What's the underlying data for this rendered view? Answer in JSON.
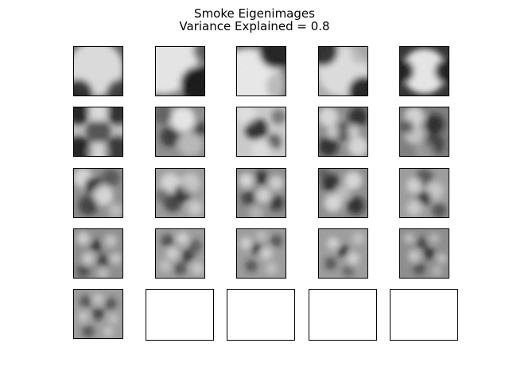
{
  "chart_data": {
    "type": "heatmap",
    "title": "Smoke Eigenimages",
    "subtitle": "Variance Explained = 0.8",
    "layout": {
      "rows": 5,
      "cols": 5
    },
    "colormap": "gray",
    "components": [
      {
        "id": 1,
        "pattern": "radial-blob-bright-center"
      },
      {
        "id": 2,
        "pattern": "gradient-bright-topleft"
      },
      {
        "id": 3,
        "pattern": "gradient-bright-bottomleft"
      },
      {
        "id": 4,
        "pattern": "diagonal-dark-corners"
      },
      {
        "id": 5,
        "pattern": "bright-center-dark-edges"
      },
      {
        "id": 6,
        "pattern": "dark-x-shape"
      },
      {
        "id": 7,
        "pattern": "bright-diagonal-blob"
      },
      {
        "id": 8,
        "pattern": "ring-dark-center"
      },
      {
        "id": 9,
        "pattern": "four-lobe"
      },
      {
        "id": 10,
        "pattern": "horizontal-bands"
      },
      {
        "id": 11,
        "pattern": "diagonal-stripes"
      },
      {
        "id": 12,
        "pattern": "diagonal-stripes-rotated"
      },
      {
        "id": 13,
        "pattern": "checker-blobs"
      },
      {
        "id": 14,
        "pattern": "four-lobe-rotated"
      },
      {
        "id": 15,
        "pattern": "horizontal-bands-fine"
      },
      {
        "id": 16,
        "pattern": "fine-blobs"
      },
      {
        "id": 17,
        "pattern": "fine-blobs-2"
      },
      {
        "id": 18,
        "pattern": "fine-diagonal"
      },
      {
        "id": 19,
        "pattern": "fine-rings"
      },
      {
        "id": 20,
        "pattern": "fine-mottled"
      },
      {
        "id": 21,
        "pattern": "fine-mottled-2"
      }
    ],
    "empty_panels": 4
  }
}
